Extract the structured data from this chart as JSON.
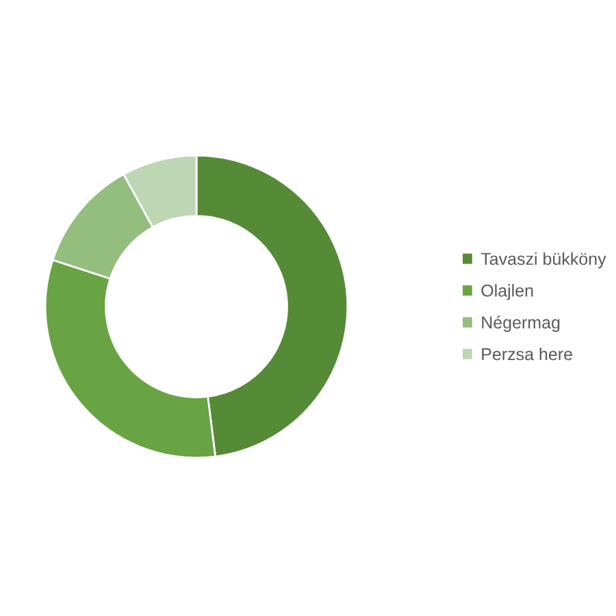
{
  "chart_data": {
    "type": "donut",
    "categories": [
      "Tavaszi bükköny",
      "Olajlen",
      "Négermag",
      "Perzsa here"
    ],
    "values": [
      48,
      32,
      12,
      8
    ],
    "colors": [
      "#558B37",
      "#68A443",
      "#93BE7E",
      "#BDD6B4"
    ],
    "legend": "right"
  }
}
